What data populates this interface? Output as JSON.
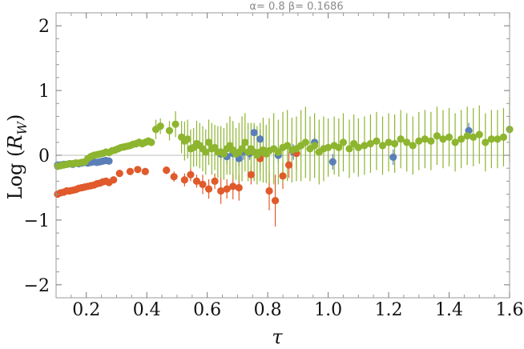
{
  "chart_data": {
    "type": "scatter",
    "title": "α= 0.8  β= 0.1686",
    "xlabel": "τ",
    "ylabel": "Log (R_W)",
    "ylabel_parts": {
      "main": "Log (",
      "R": "R",
      "sub": "W",
      "close": ")"
    },
    "xlim": [
      0.1,
      1.6
    ],
    "ylim": [
      -2.2,
      2.2
    ],
    "x_ticks": [
      0.2,
      0.4,
      0.6,
      0.8,
      1.0,
      1.2,
      1.4,
      1.6
    ],
    "x_tick_labels": [
      "0.2",
      "0.4",
      "0.6",
      "0.8",
      "1.0",
      "1.2",
      "1.4",
      "1.6"
    ],
    "y_ticks": [
      -2,
      -1,
      0,
      1,
      2
    ],
    "y_tick_labels": [
      "−2",
      "−1",
      "0",
      "1",
      "2"
    ],
    "reference_line_y": 0,
    "grid": false,
    "colors": {
      "blue": "#5a7fb8",
      "orange": "#e05a2b",
      "green": "#8db52f",
      "frame": "#999999",
      "refline": "#bdbdbd"
    },
    "series": [
      {
        "color": "#5a7fb8",
        "points": [
          [
            0.105,
            -0.15,
            0.03
          ],
          [
            0.115,
            -0.15,
            0.03
          ],
          [
            0.125,
            -0.14,
            0.03
          ],
          [
            0.135,
            -0.14,
            0.03
          ],
          [
            0.145,
            -0.13,
            0.03
          ],
          [
            0.155,
            -0.14,
            0.03
          ],
          [
            0.165,
            -0.12,
            0.03
          ],
          [
            0.175,
            -0.13,
            0.03
          ],
          [
            0.185,
            -0.12,
            0.03
          ],
          [
            0.195,
            -0.11,
            0.03
          ],
          [
            0.205,
            -0.12,
            0.03
          ],
          [
            0.215,
            -0.11,
            0.03
          ],
          [
            0.225,
            -0.1,
            0.03
          ],
          [
            0.235,
            -0.11,
            0.03
          ],
          [
            0.245,
            -0.1,
            0.03
          ],
          [
            0.255,
            -0.09,
            0.03
          ],
          [
            0.265,
            -0.08,
            0.03
          ],
          [
            0.275,
            -0.09,
            0.03
          ],
          [
            0.645,
            0.02,
            0.1
          ],
          [
            0.665,
            -0.02,
            0.12
          ],
          [
            0.685,
            0.03,
            0.1
          ],
          [
            0.705,
            -0.05,
            0.12
          ],
          [
            0.72,
            0.05,
            0.12
          ],
          [
            0.74,
            0.03,
            0.1
          ],
          [
            0.755,
            0.35,
            0.12
          ],
          [
            0.775,
            0.25,
            0.15
          ],
          [
            0.835,
            0.0,
            0.12
          ],
          [
            0.885,
            0.05,
            0.12
          ],
          [
            0.955,
            0.2,
            0.18
          ],
          [
            1.015,
            -0.1,
            0.12
          ],
          [
            1.215,
            -0.03,
            0.12
          ],
          [
            1.465,
            0.38,
            0.12
          ]
        ]
      },
      {
        "color": "#e05a2b",
        "points": [
          [
            0.105,
            -0.6,
            0.03
          ],
          [
            0.115,
            -0.58,
            0.03
          ],
          [
            0.125,
            -0.57,
            0.03
          ],
          [
            0.135,
            -0.55,
            0.03
          ],
          [
            0.145,
            -0.55,
            0.03
          ],
          [
            0.155,
            -0.54,
            0.03
          ],
          [
            0.165,
            -0.53,
            0.03
          ],
          [
            0.175,
            -0.51,
            0.03
          ],
          [
            0.185,
            -0.5,
            0.03
          ],
          [
            0.195,
            -0.49,
            0.03
          ],
          [
            0.205,
            -0.48,
            0.03
          ],
          [
            0.215,
            -0.47,
            0.03
          ],
          [
            0.225,
            -0.46,
            0.03
          ],
          [
            0.235,
            -0.44,
            0.03
          ],
          [
            0.245,
            -0.43,
            0.03
          ],
          [
            0.255,
            -0.41,
            0.03
          ],
          [
            0.265,
            -0.4,
            0.03
          ],
          [
            0.275,
            -0.42,
            0.03
          ],
          [
            0.29,
            -0.38,
            0.04
          ],
          [
            0.31,
            -0.28,
            0.05
          ],
          [
            0.345,
            -0.25,
            0.05
          ],
          [
            0.37,
            -0.22,
            0.05
          ],
          [
            0.395,
            -0.25,
            0.05
          ],
          [
            0.465,
            -0.23,
            0.06
          ],
          [
            0.49,
            -0.33,
            0.08
          ],
          [
            0.525,
            -0.38,
            0.1
          ],
          [
            0.545,
            -0.3,
            0.1
          ],
          [
            0.565,
            -0.4,
            0.1
          ],
          [
            0.585,
            -0.45,
            0.15
          ],
          [
            0.605,
            -0.52,
            0.15
          ],
          [
            0.625,
            -0.4,
            0.12
          ],
          [
            0.645,
            -0.55,
            0.2
          ],
          [
            0.665,
            -0.52,
            0.15
          ],
          [
            0.685,
            -0.48,
            0.2
          ],
          [
            0.705,
            -0.5,
            0.2
          ],
          [
            0.745,
            -0.3,
            0.15
          ],
          [
            0.775,
            -0.05,
            0.2
          ],
          [
            0.805,
            -0.55,
            0.3
          ],
          [
            0.825,
            -0.7,
            0.4
          ],
          [
            0.85,
            -0.32,
            0.2
          ],
          [
            0.87,
            -0.15,
            0.2
          ],
          [
            0.895,
            0.03,
            0.25
          ]
        ]
      },
      {
        "color": "#8db52f",
        "points": [
          [
            0.105,
            -0.17,
            0.03
          ],
          [
            0.115,
            -0.16,
            0.03
          ],
          [
            0.125,
            -0.15,
            0.03
          ],
          [
            0.135,
            -0.14,
            0.03
          ],
          [
            0.145,
            -0.13,
            0.03
          ],
          [
            0.155,
            -0.13,
            0.03
          ],
          [
            0.165,
            -0.12,
            0.03
          ],
          [
            0.175,
            -0.12,
            0.03
          ],
          [
            0.185,
            -0.11,
            0.03
          ],
          [
            0.195,
            -0.1,
            0.03
          ],
          [
            0.205,
            -0.05,
            0.03
          ],
          [
            0.215,
            -0.02,
            0.03
          ],
          [
            0.225,
            0.0,
            0.03
          ],
          [
            0.235,
            0.01,
            0.03
          ],
          [
            0.245,
            0.02,
            0.03
          ],
          [
            0.255,
            0.03,
            0.03
          ],
          [
            0.265,
            0.05,
            0.03
          ],
          [
            0.275,
            0.04,
            0.03
          ],
          [
            0.285,
            0.07,
            0.04
          ],
          [
            0.295,
            0.08,
            0.04
          ],
          [
            0.305,
            0.1,
            0.05
          ],
          [
            0.315,
            0.12,
            0.05
          ],
          [
            0.325,
            0.13,
            0.05
          ],
          [
            0.335,
            0.14,
            0.05
          ],
          [
            0.345,
            0.15,
            0.05
          ],
          [
            0.355,
            0.17,
            0.05
          ],
          [
            0.365,
            0.18,
            0.06
          ],
          [
            0.375,
            0.2,
            0.06
          ],
          [
            0.385,
            0.18,
            0.06
          ],
          [
            0.395,
            0.2,
            0.06
          ],
          [
            0.405,
            0.22,
            0.06
          ],
          [
            0.415,
            0.2,
            0.06
          ],
          [
            0.43,
            0.4,
            0.15
          ],
          [
            0.445,
            0.45,
            0.12
          ],
          [
            0.475,
            0.38,
            0.15
          ],
          [
            0.495,
            0.48,
            0.2
          ],
          [
            0.515,
            0.28,
            0.25
          ],
          [
            0.525,
            0.22,
            0.3
          ],
          [
            0.535,
            0.25,
            0.3
          ],
          [
            0.545,
            0.1,
            0.3
          ],
          [
            0.555,
            0.12,
            0.3
          ],
          [
            0.565,
            0.18,
            0.35
          ],
          [
            0.575,
            0.15,
            0.35
          ],
          [
            0.585,
            0.1,
            0.35
          ],
          [
            0.595,
            0.05,
            0.35
          ],
          [
            0.605,
            0.2,
            0.35
          ],
          [
            0.615,
            0.1,
            0.4
          ],
          [
            0.625,
            0.12,
            0.35
          ],
          [
            0.635,
            0.05,
            0.4
          ],
          [
            0.645,
            0.05,
            0.4
          ],
          [
            0.655,
            0.02,
            0.4
          ],
          [
            0.665,
            0.1,
            0.4
          ],
          [
            0.675,
            0.15,
            0.45
          ],
          [
            0.685,
            0.08,
            0.45
          ],
          [
            0.695,
            0.02,
            0.4
          ],
          [
            0.705,
            0.05,
            0.45
          ],
          [
            0.715,
            0.1,
            0.5
          ],
          [
            0.725,
            0.2,
            0.45
          ],
          [
            0.735,
            0.05,
            0.45
          ],
          [
            0.745,
            0.1,
            0.4
          ],
          [
            0.755,
            0.05,
            0.45
          ],
          [
            0.765,
            0.0,
            0.45
          ],
          [
            0.775,
            0.05,
            0.45
          ],
          [
            0.785,
            0.08,
            0.5
          ],
          [
            0.795,
            0.02,
            0.45
          ],
          [
            0.805,
            0.07,
            0.5
          ],
          [
            0.82,
            0.1,
            0.55
          ],
          [
            0.835,
            0.05,
            0.5
          ],
          [
            0.85,
            0.12,
            0.55
          ],
          [
            0.865,
            0.15,
            0.55
          ],
          [
            0.88,
            0.08,
            0.5
          ],
          [
            0.895,
            0.1,
            0.5
          ],
          [
            0.91,
            0.15,
            0.55
          ],
          [
            0.925,
            0.2,
            0.55
          ],
          [
            0.94,
            0.1,
            0.5
          ],
          [
            0.955,
            0.15,
            0.5
          ],
          [
            0.97,
            0.05,
            0.5
          ],
          [
            0.985,
            0.1,
            0.5
          ],
          [
            1.0,
            0.12,
            0.45
          ],
          [
            1.02,
            0.15,
            0.45
          ],
          [
            1.035,
            0.12,
            0.45
          ],
          [
            1.05,
            0.2,
            0.45
          ],
          [
            1.07,
            0.1,
            0.45
          ],
          [
            1.085,
            0.18,
            0.45
          ],
          [
            1.1,
            0.12,
            0.45
          ],
          [
            1.12,
            0.15,
            0.45
          ],
          [
            1.14,
            0.18,
            0.45
          ],
          [
            1.16,
            0.22,
            0.45
          ],
          [
            1.18,
            0.15,
            0.45
          ],
          [
            1.2,
            0.2,
            0.45
          ],
          [
            1.22,
            0.18,
            0.45
          ],
          [
            1.24,
            0.25,
            0.45
          ],
          [
            1.26,
            0.2,
            0.45
          ],
          [
            1.28,
            0.15,
            0.45
          ],
          [
            1.3,
            0.22,
            0.45
          ],
          [
            1.32,
            0.25,
            0.45
          ],
          [
            1.34,
            0.22,
            0.45
          ],
          [
            1.36,
            0.3,
            0.45
          ],
          [
            1.38,
            0.25,
            0.45
          ],
          [
            1.4,
            0.28,
            0.45
          ],
          [
            1.42,
            0.2,
            0.45
          ],
          [
            1.44,
            0.25,
            0.45
          ],
          [
            1.46,
            0.3,
            0.45
          ],
          [
            1.48,
            0.28,
            0.45
          ],
          [
            1.5,
            0.32,
            0.45
          ],
          [
            1.52,
            0.2,
            0.45
          ],
          [
            1.54,
            0.25,
            0.45
          ],
          [
            1.56,
            0.25,
            0.45
          ],
          [
            1.58,
            0.28,
            0.45
          ],
          [
            1.6,
            0.4,
            0.5
          ]
        ]
      }
    ]
  }
}
